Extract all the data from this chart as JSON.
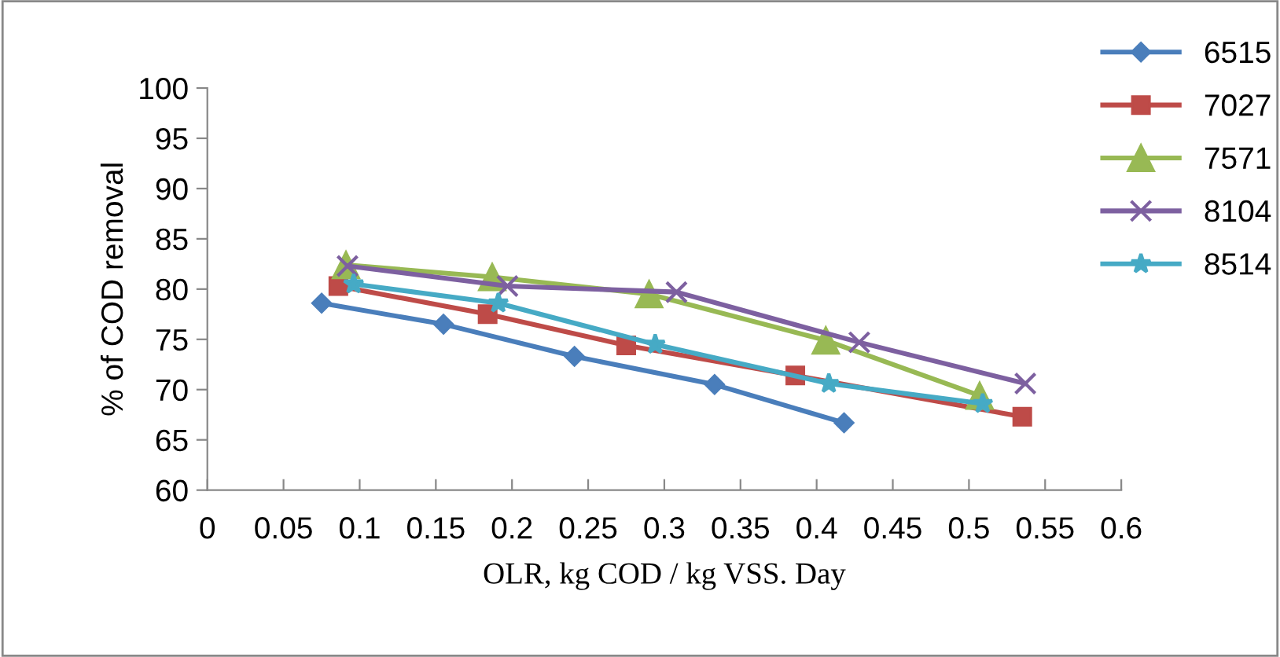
{
  "chart_data": {
    "type": "line",
    "xlabel": "OLR, kg COD / kg VSS. Day",
    "ylabel": "% of COD removal",
    "xlim": [
      0,
      0.6
    ],
    "xticks": [
      0,
      0.05,
      0.1,
      0.15,
      0.2,
      0.25,
      0.3,
      0.35,
      0.4,
      0.45,
      0.5,
      0.55,
      0.6
    ],
    "ylim": [
      60,
      100
    ],
    "yticks": [
      60,
      65,
      70,
      75,
      80,
      85,
      90,
      95,
      100
    ],
    "grid": false,
    "legend": "right",
    "series": [
      {
        "name": "6515",
        "color": "#4a7ebb",
        "marker": "diamond",
        "x": [
          0.075,
          0.155,
          0.241,
          0.333,
          0.418
        ],
        "values": [
          78.6,
          76.5,
          73.3,
          70.5,
          66.7
        ]
      },
      {
        "name": "7027",
        "color": "#be4b48",
        "marker": "square",
        "x": [
          0.086,
          0.184,
          0.275,
          0.386,
          0.535
        ],
        "values": [
          80.3,
          77.5,
          74.4,
          71.4,
          67.3
        ]
      },
      {
        "name": "7571",
        "color": "#98b954",
        "marker": "triangle",
        "x": [
          0.091,
          0.187,
          0.29,
          0.406,
          0.507
        ],
        "values": [
          82.4,
          81.2,
          79.5,
          74.9,
          69.4
        ]
      },
      {
        "name": "8104",
        "color": "#7d60a0",
        "marker": "cross",
        "x": [
          0.092,
          0.197,
          0.308,
          0.428,
          0.537
        ],
        "values": [
          82.3,
          80.3,
          79.7,
          74.7,
          70.6
        ]
      },
      {
        "name": "8514",
        "color": "#46aac5",
        "marker": "star",
        "x": [
          0.096,
          0.191,
          0.294,
          0.408,
          0.509
        ],
        "values": [
          80.5,
          78.6,
          74.5,
          70.6,
          68.6
        ]
      }
    ]
  }
}
